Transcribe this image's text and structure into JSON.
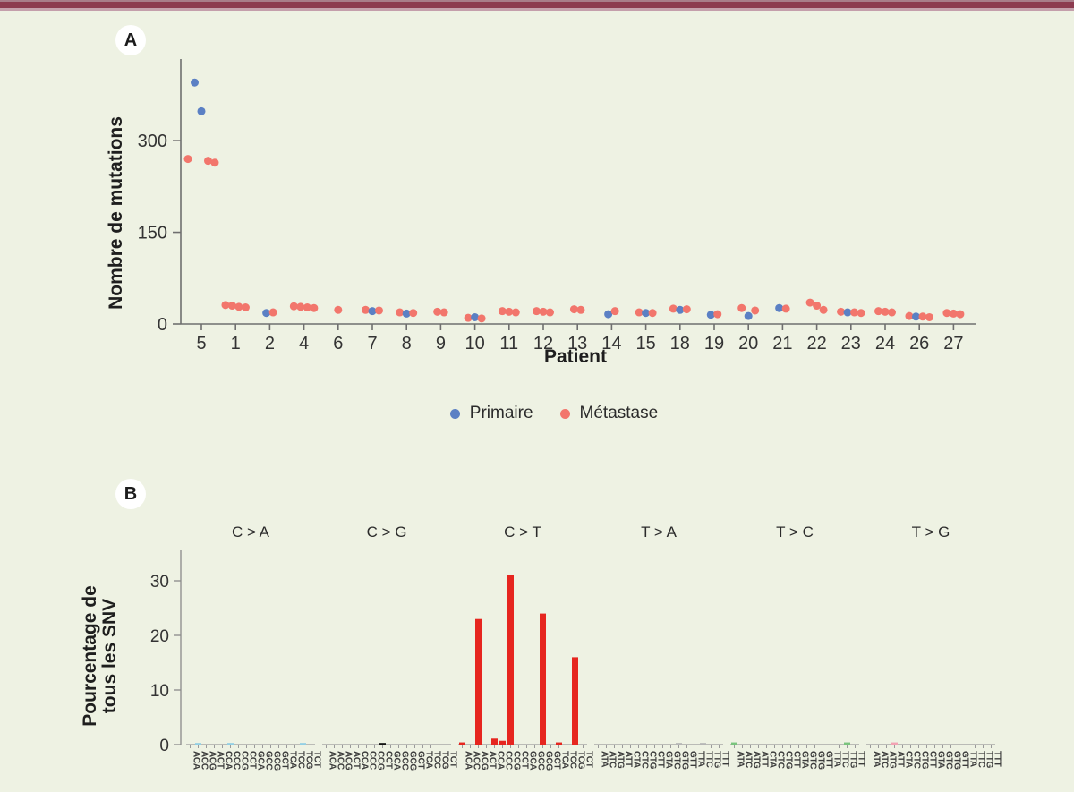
{
  "page": {
    "background_color": "#eef2e3",
    "top_bar_colors": [
      "#a87c89",
      "#8c3a4f",
      "#c49fab"
    ]
  },
  "panel_a": {
    "label": "A"
  },
  "panel_b": {
    "label": "B"
  },
  "legend": {
    "items": [
      {
        "label": "Primaire",
        "color": "#5b80c4"
      },
      {
        "label": "Métastase",
        "color": "#f2766c"
      }
    ]
  },
  "chart_data": [
    {
      "type": "scatter",
      "title": "",
      "xlabel": "Patient",
      "ylabel": "Nombre de mutations",
      "yticks": [
        0,
        150,
        300
      ],
      "ylim": [
        0,
        430
      ],
      "grid": false,
      "legend_position": "bottom",
      "categories": [
        "5",
        "1",
        "2",
        "4",
        "6",
        "7",
        "8",
        "9",
        "10",
        "11",
        "12",
        "13",
        "14",
        "15",
        "18",
        "19",
        "20",
        "21",
        "22",
        "23",
        "24",
        "26",
        "27"
      ],
      "series": [
        {
          "name": "Primaire",
          "color": "#5b80c4",
          "points": {
            "5": [
              395,
              348
            ],
            "2": [
              18
            ],
            "7": [
              21
            ],
            "8": [
              17
            ],
            "10": [
              11
            ],
            "14": [
              16
            ],
            "15": [
              18
            ],
            "18": [
              23
            ],
            "19": [
              15
            ],
            "20": [
              13
            ],
            "21": [
              26
            ],
            "23": [
              19
            ],
            "26": [
              12
            ]
          }
        },
        {
          "name": "Métastase",
          "color": "#f2766c",
          "points": {
            "5": [
              270,
              267,
              264
            ],
            "1": [
              31,
              30,
              28,
              27
            ],
            "2": [
              19
            ],
            "4": [
              29,
              28,
              27,
              26
            ],
            "6": [
              23
            ],
            "7": [
              23,
              22
            ],
            "8": [
              19,
              18
            ],
            "9": [
              20,
              19
            ],
            "10": [
              10,
              9
            ],
            "11": [
              21,
              20,
              19
            ],
            "12": [
              21,
              20,
              19
            ],
            "13": [
              24,
              23
            ],
            "14": [
              21
            ],
            "15": [
              19,
              18
            ],
            "18": [
              25,
              24
            ],
            "19": [
              16
            ],
            "20": [
              26,
              22
            ],
            "21": [
              25
            ],
            "22": [
              35,
              30,
              23
            ],
            "23": [
              20,
              19,
              18
            ],
            "24": [
              21,
              20,
              19
            ],
            "26": [
              13,
              12,
              11
            ],
            "27": [
              18,
              17,
              16
            ]
          }
        }
      ]
    },
    {
      "type": "bar",
      "title": "",
      "xlabel": "",
      "ylabel_lines": [
        "Pourcentage de",
        "tous les SNV"
      ],
      "yticks": [
        0,
        10,
        20,
        30
      ],
      "ylim": [
        0,
        33
      ],
      "grid": false,
      "groups": [
        {
          "label": "C > A",
          "color": "#92cfe4",
          "categories": [
            "ACA",
            "ACC",
            "ACG",
            "ACT",
            "CCA",
            "CCC",
            "CCG",
            "CCT",
            "GCA",
            "GCC",
            "GCG",
            "GCT",
            "TCA",
            "TCC",
            "TCG",
            "TCT"
          ],
          "values": [
            0,
            0.3,
            0,
            0,
            0,
            0.3,
            0,
            0,
            0,
            0,
            0,
            0,
            0,
            0,
            0.3,
            0
          ]
        },
        {
          "label": "C > G",
          "color": "#141414",
          "categories": [
            "ACA",
            "ACC",
            "ACG",
            "ACT",
            "CCA",
            "CCC",
            "CCG",
            "CCT",
            "GCA",
            "GCC",
            "GCG",
            "GCT",
            "TCA",
            "TCC",
            "TCG",
            "TCT"
          ],
          "values": [
            0,
            0,
            0,
            0,
            0,
            0,
            0,
            0.3,
            0,
            0,
            0,
            0,
            0,
            0,
            0,
            0
          ]
        },
        {
          "label": "C > T",
          "color": "#e6261f",
          "categories": [
            "ACA",
            "ACC",
            "ACG",
            "ACT",
            "CCA",
            "CCC",
            "CCG",
            "CCT",
            "GCA",
            "GCC",
            "GCG",
            "GCT",
            "TCA",
            "TCC",
            "TCG",
            "TCT"
          ],
          "values": [
            0.4,
            0,
            23,
            0,
            1.1,
            0.7,
            31,
            0,
            0,
            0,
            24,
            0,
            0.4,
            0,
            16,
            0
          ]
        },
        {
          "label": "T > A",
          "color": "#b5b5b5",
          "categories": [
            "ATA",
            "ATC",
            "ATG",
            "ATT",
            "CTA",
            "CTC",
            "CTG",
            "CTT",
            "GTA",
            "GTC",
            "GTG",
            "GTT",
            "TTA",
            "TTC",
            "TTG",
            "TTT"
          ],
          "values": [
            0,
            0,
            0,
            0,
            0,
            0,
            0,
            0,
            0,
            0,
            0.3,
            0,
            0,
            0.3,
            0,
            0
          ]
        },
        {
          "label": "T > C",
          "color": "#7ac47d",
          "categories": [
            "ATA",
            "ATC",
            "ATG",
            "ATT",
            "CTA",
            "CTC",
            "CTG",
            "CTT",
            "GTA",
            "GTC",
            "GTG",
            "GTT",
            "TTA",
            "TTC",
            "TTG",
            "TTT"
          ],
          "values": [
            0.4,
            0,
            0,
            0,
            0,
            0,
            0,
            0,
            0,
            0,
            0,
            0,
            0,
            0,
            0.4,
            0
          ]
        },
        {
          "label": "T > G",
          "color": "#f3a3b3",
          "categories": [
            "ATA",
            "ATC",
            "ATG",
            "ATT",
            "CTA",
            "CTC",
            "CTG",
            "CTT",
            "GTA",
            "GTC",
            "GTG",
            "GTT",
            "TTA",
            "TTC",
            "TTG",
            "TTT"
          ],
          "values": [
            0,
            0,
            0,
            0.4,
            0,
            0,
            0,
            0,
            0,
            0,
            0,
            0,
            0,
            0,
            0,
            0
          ]
        }
      ]
    }
  ]
}
